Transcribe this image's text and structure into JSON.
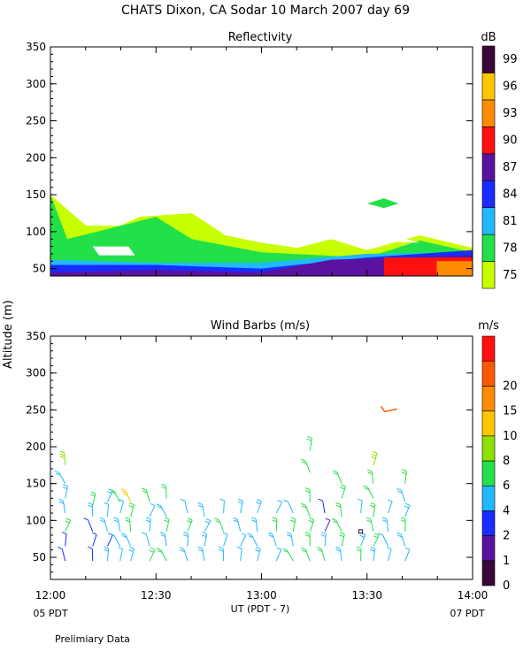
{
  "header": {
    "title": "CHATS Dixon, CA   Sodar   10 March 2007   day   69"
  },
  "footer": {
    "note": "Prelimiary Data",
    "left_local": "05 PDT",
    "right_local": "07 PDT",
    "xlabel": "UT  (PDT - 7)"
  },
  "chart_data": [
    {
      "type": "heatmap",
      "title": "Reflectivity",
      "ylabel": "Altitude (m)",
      "x_ticks": [
        "12:00",
        "12:30",
        "13:00",
        "13:30",
        "14:00"
      ],
      "x_range_hours": [
        12.0,
        14.0
      ],
      "ylim": [
        40,
        350
      ],
      "y_ticks": [
        50,
        100,
        150,
        200,
        250,
        300,
        350
      ],
      "colorbar": {
        "unit": "dB",
        "levels": [
          75,
          78,
          81,
          84,
          87,
          90,
          93,
          96,
          99
        ],
        "colors": [
          "#c8ff00",
          "#22e04a",
          "#22b8ff",
          "#1a2cff",
          "#5a12a0",
          "#ff1010",
          "#ff8c00",
          "#ffc600",
          "#3a0838"
        ]
      },
      "layers": [
        {
          "level": 75,
          "color": "#c8ff00",
          "top_edge_m": [
            [
              12.0,
              150
            ],
            [
              12.1,
              125
            ],
            [
              12.17,
              108
            ],
            [
              12.33,
              108
            ],
            [
              12.42,
              120
            ],
            [
              12.67,
              125
            ],
            [
              12.75,
              110
            ],
            [
              12.83,
              95
            ],
            [
              13.0,
              85
            ],
            [
              13.17,
              78
            ],
            [
              13.33,
              90
            ],
            [
              13.5,
              75
            ],
            [
              13.75,
              95
            ],
            [
              14.0,
              78
            ]
          ]
        },
        {
          "level": 78,
          "color": "#22e04a",
          "top_edge_m": [
            [
              12.0,
              150
            ],
            [
              12.08,
              90
            ],
            [
              12.5,
              120
            ],
            [
              12.67,
              90
            ],
            [
              13.0,
              72
            ],
            [
              13.5,
              65
            ],
            [
              13.75,
              88
            ],
            [
              14.0,
              72
            ]
          ]
        },
        {
          "level": 81,
          "color": "#22b8ff",
          "top_edge_m": [
            [
              12.0,
              62
            ],
            [
              12.5,
              58
            ],
            [
              13.0,
              58
            ],
            [
              13.5,
              70
            ],
            [
              14.0,
              72
            ]
          ]
        },
        {
          "level": 84,
          "color": "#1a2cff",
          "top_edge_m": [
            [
              12.0,
              55
            ],
            [
              12.5,
              55
            ],
            [
              13.0,
              50
            ],
            [
              13.5,
              65
            ],
            [
              14.0,
              75
            ]
          ]
        },
        {
          "level": 87,
          "color": "#5a12a0",
          "top_edge_m": [
            [
              12.0,
              45
            ],
            [
              12.5,
              48
            ],
            [
              13.0,
              45
            ],
            [
              13.33,
              62
            ],
            [
              14.0,
              68
            ]
          ]
        },
        {
          "level": 90,
          "color": "#ff1010",
          "top_edge_m": [
            [
              13.58,
              65
            ],
            [
              14.0,
              65
            ]
          ]
        },
        {
          "level": 93,
          "color": "#ff8c00",
          "top_edge_m": [
            [
              13.83,
              60
            ],
            [
              14.0,
              60
            ]
          ]
        }
      ]
    },
    {
      "type": "scatter",
      "title": "Wind Barbs (m/s)",
      "ylabel": "Altitude (m)",
      "x_ticks": [
        "12:00",
        "12:30",
        "13:00",
        "13:30",
        "14:00"
      ],
      "x_range_hours": [
        12.0,
        14.0
      ],
      "ylim": [
        20,
        350
      ],
      "y_ticks": [
        50,
        100,
        150,
        200,
        250,
        300,
        350
      ],
      "colorbar": {
        "unit": "m/s",
        "levels": [
          0,
          1,
          2,
          4,
          6,
          8,
          10,
          15,
          20
        ],
        "colors": [
          "#3a0838",
          "#5a12a0",
          "#1a2cff",
          "#22b8ff",
          "#22e04a",
          "#8ee000",
          "#ffc600",
          "#ff8c00",
          "#ff5a00",
          "#ff1010"
        ]
      },
      "series": [
        {
          "time_h": 12.07,
          "points": [
            [
              45,
              3
            ],
            [
              65,
              3
            ],
            [
              85,
              6
            ],
            [
              110,
              5
            ],
            [
              130,
              5
            ],
            [
              150,
              5
            ],
            [
              175,
              8
            ]
          ]
        },
        {
          "time_h": 12.2,
          "points": [
            [
              45,
              3
            ],
            [
              65,
              2
            ],
            [
              85,
              2
            ],
            [
              105,
              5
            ],
            [
              120,
              6
            ]
          ]
        },
        {
          "time_h": 12.27,
          "points": [
            [
              45,
              5
            ],
            [
              65,
              3
            ],
            [
              85,
              5
            ],
            [
              105,
              4
            ],
            [
              125,
              5
            ]
          ]
        },
        {
          "time_h": 12.33,
          "points": [
            [
              45,
              4
            ],
            [
              65,
              4
            ],
            [
              85,
              5
            ],
            [
              110,
              4
            ],
            [
              125,
              6
            ]
          ]
        },
        {
          "time_h": 12.38,
          "points": [
            [
              45,
              5
            ],
            [
              65,
              5
            ],
            [
              85,
              6
            ],
            [
              105,
              6
            ],
            [
              125,
              10
            ]
          ]
        },
        {
          "time_h": 12.47,
          "points": [
            [
              45,
              6
            ],
            [
              65,
              4
            ],
            [
              85,
              5
            ],
            [
              105,
              4
            ],
            [
              125,
              6
            ]
          ]
        },
        {
          "time_h": 12.55,
          "points": [
            [
              45,
              6
            ],
            [
              65,
              5
            ],
            [
              85,
              6
            ],
            [
              105,
              5
            ],
            [
              130,
              6
            ]
          ]
        },
        {
          "time_h": 12.65,
          "points": [
            [
              45,
              5
            ],
            [
              65,
              5
            ],
            [
              85,
              6
            ],
            [
              110,
              4
            ]
          ]
        },
        {
          "time_h": 12.73,
          "points": [
            [
              45,
              5
            ],
            [
              65,
              5
            ],
            [
              85,
              5
            ],
            [
              105,
              5
            ]
          ]
        },
        {
          "time_h": 12.82,
          "points": [
            [
              45,
              5
            ],
            [
              65,
              4
            ],
            [
              85,
              6
            ],
            [
              110,
              4
            ]
          ]
        },
        {
          "time_h": 12.9,
          "points": [
            [
              45,
              4
            ],
            [
              65,
              4
            ],
            [
              85,
              5
            ],
            [
              110,
              5
            ]
          ]
        },
        {
          "time_h": 12.98,
          "points": [
            [
              45,
              5
            ],
            [
              65,
              5
            ],
            [
              85,
              5
            ],
            [
              110,
              5
            ]
          ]
        },
        {
          "time_h": 13.07,
          "points": [
            [
              45,
              4
            ],
            [
              65,
              5
            ],
            [
              85,
              6
            ],
            [
              110,
              4
            ]
          ]
        },
        {
          "time_h": 13.15,
          "points": [
            [
              45,
              6
            ],
            [
              65,
              5
            ],
            [
              85,
              6
            ],
            [
              110,
              4
            ]
          ]
        },
        {
          "time_h": 13.23,
          "points": [
            [
              45,
              6
            ],
            [
              65,
              6
            ],
            [
              85,
              6
            ],
            [
              105,
              6
            ],
            [
              125,
              6
            ],
            [
              165,
              6
            ],
            [
              195,
              6
            ]
          ]
        },
        {
          "time_h": 13.3,
          "points": [
            [
              45,
              6
            ],
            [
              65,
              5
            ],
            [
              85,
              1
            ],
            [
              110,
              3
            ]
          ]
        },
        {
          "time_h": 13.38,
          "points": [
            [
              45,
              5
            ],
            [
              65,
              6
            ],
            [
              85,
              6
            ],
            [
              105,
              6
            ],
            [
              130,
              6
            ],
            [
              150,
              6
            ]
          ]
        },
        {
          "time_h": 13.47,
          "points": [
            [
              45,
              6
            ],
            [
              65,
              5
            ],
            [
              85,
              0
            ],
            [
              110,
              4
            ]
          ]
        },
        {
          "time_h": 13.53,
          "points": [
            [
              45,
              5
            ],
            [
              65,
              6
            ],
            [
              85,
              6
            ],
            [
              105,
              6
            ],
            [
              130,
              6
            ],
            [
              150,
              6
            ],
            [
              175,
              8
            ]
          ]
        },
        {
          "time_h": 13.6,
          "points": [
            [
              45,
              4
            ],
            [
              65,
              4
            ],
            [
              85,
              5
            ],
            [
              110,
              4
            ],
            [
              250,
              20
            ]
          ]
        },
        {
          "time_h": 13.68,
          "points": [
            [
              45,
              4
            ],
            [
              65,
              5
            ],
            [
              85,
              6
            ],
            [
              105,
              5
            ],
            [
              125,
              5
            ],
            [
              150,
              6
            ]
          ]
        }
      ]
    }
  ]
}
